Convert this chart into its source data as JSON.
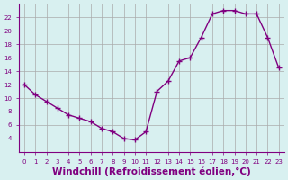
{
  "x": [
    0,
    1,
    2,
    3,
    4,
    5,
    6,
    7,
    8,
    9,
    10,
    11,
    12,
    13,
    14,
    15,
    16,
    17,
    18,
    19,
    20,
    21,
    22,
    23
  ],
  "y": [
    12,
    10.5,
    9.5,
    8.5,
    7.5,
    7,
    6.5,
    5.5,
    5,
    4,
    3.8,
    5,
    11,
    12.5,
    15.5,
    16,
    19,
    22.5,
    23,
    23,
    22.5,
    22.5,
    19,
    14.5
  ],
  "line_color": "#800080",
  "marker": "+",
  "marker_size": 5,
  "bg_color": "#d8f0f0",
  "grid_color": "#aaaaaa",
  "xlabel": "Windchill (Refroidissement éolien,°C)",
  "xlabel_color": "#800080",
  "xlim": [
    -0.5,
    23.5
  ],
  "ylim": [
    2,
    24
  ],
  "yticks": [
    4,
    6,
    8,
    10,
    12,
    14,
    16,
    18,
    20,
    22
  ],
  "xticks": [
    0,
    1,
    2,
    3,
    4,
    5,
    6,
    7,
    8,
    9,
    10,
    11,
    12,
    13,
    14,
    15,
    16,
    17,
    18,
    19,
    20,
    21,
    22,
    23
  ],
  "tick_color": "#800080",
  "tick_fontsize": 5,
  "xlabel_fontsize": 7.5
}
